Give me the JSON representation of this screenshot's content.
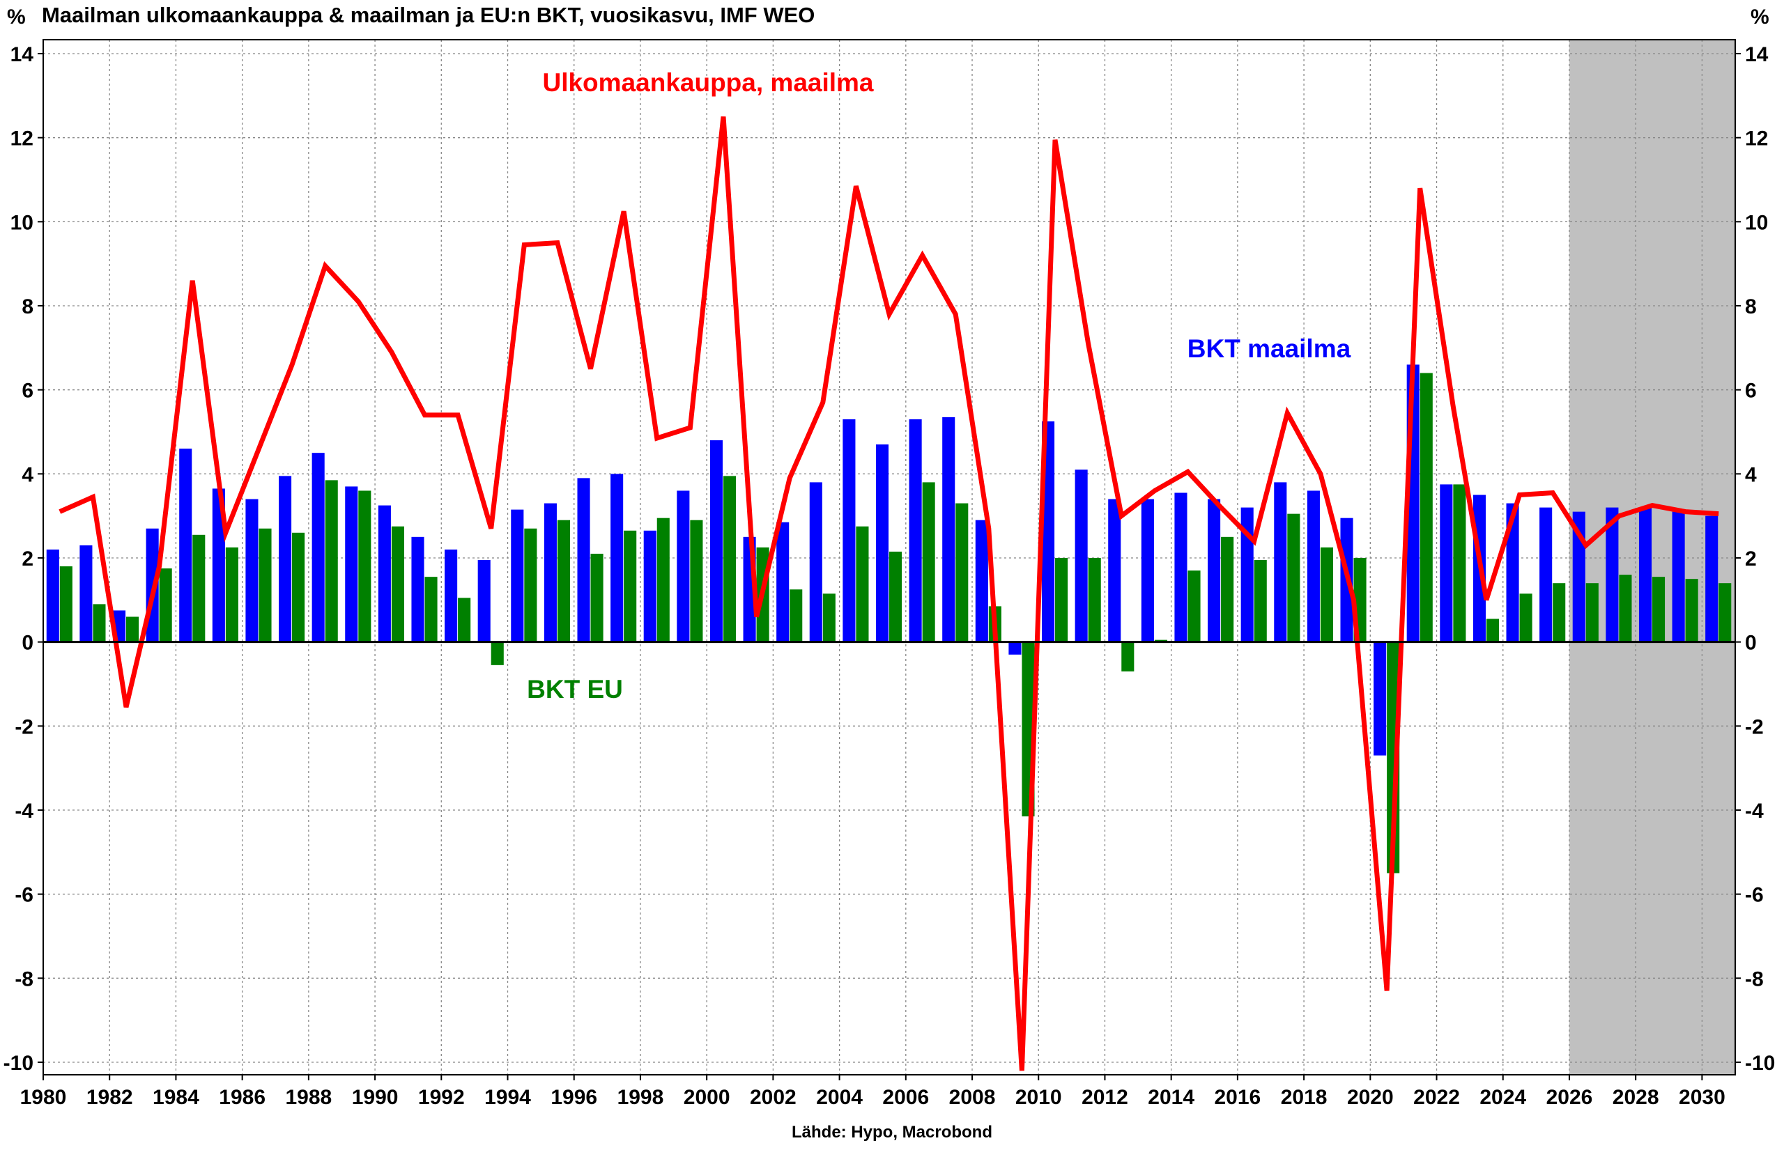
{
  "chart_data": {
    "type": "bar+line",
    "title": "Maailman ulkomaankauppa & maailman ja EU:n BKT, vuosikasvu, IMF WEO",
    "ylabel_left": "%",
    "ylabel_right": "%",
    "source": "Lähde: Hypo, Macrobond",
    "ylim": [
      -10.5,
      14.5
    ],
    "yticks": [
      -10,
      -8,
      -6,
      -4,
      -2,
      0,
      2,
      4,
      6,
      8,
      10,
      12,
      14
    ],
    "xlim": [
      1980,
      2031
    ],
    "xticks": [
      1980,
      1982,
      1984,
      1986,
      1988,
      1990,
      1992,
      1994,
      1996,
      1998,
      2000,
      2002,
      2004,
      2006,
      2008,
      2010,
      2012,
      2014,
      2016,
      2018,
      2020,
      2022,
      2024,
      2026,
      2028,
      2030
    ],
    "forecast_shading_from": 2026,
    "grid": true,
    "x": [
      1980,
      1981,
      1982,
      1983,
      1984,
      1985,
      1986,
      1987,
      1988,
      1989,
      1990,
      1991,
      1992,
      1993,
      1994,
      1995,
      1996,
      1997,
      1998,
      1999,
      2000,
      2001,
      2002,
      2003,
      2004,
      2005,
      2006,
      2007,
      2008,
      2009,
      2010,
      2011,
      2012,
      2013,
      2014,
      2015,
      2016,
      2017,
      2018,
      2019,
      2020,
      2021,
      2022,
      2023,
      2024,
      2025,
      2026,
      2027,
      2028,
      2029,
      2030
    ],
    "series": [
      {
        "name": "BKT maailma",
        "type": "bar",
        "color": "#0000ff",
        "values": [
          2.2,
          2.3,
          0.75,
          2.7,
          4.6,
          3.65,
          3.4,
          3.95,
          4.5,
          3.7,
          3.25,
          2.5,
          2.2,
          1.95,
          3.15,
          3.3,
          3.9,
          4.0,
          2.65,
          3.6,
          4.8,
          2.5,
          2.85,
          3.8,
          5.3,
          4.7,
          5.3,
          5.35,
          2.9,
          -0.3,
          5.25,
          4.1,
          3.4,
          3.4,
          3.55,
          3.4,
          3.2,
          3.8,
          3.6,
          2.95,
          -2.7,
          6.6,
          3.75,
          3.5,
          3.3,
          3.2,
          3.1,
          3.2,
          3.2,
          3.1,
          3.0
        ]
      },
      {
        "name": "BKT EU",
        "type": "bar",
        "color": "#008000",
        "values": [
          1.8,
          0.9,
          0.6,
          1.75,
          2.55,
          2.25,
          2.7,
          2.6,
          3.85,
          3.6,
          2.75,
          1.55,
          1.05,
          -0.55,
          2.7,
          2.9,
          2.1,
          2.65,
          2.95,
          2.9,
          3.95,
          2.25,
          1.25,
          1.15,
          2.75,
          2.15,
          3.8,
          3.3,
          0.85,
          -4.15,
          2.0,
          2.0,
          -0.7,
          0.05,
          1.7,
          2.5,
          1.95,
          3.05,
          2.25,
          2.0,
          -5.5,
          6.4,
          3.75,
          0.55,
          1.15,
          1.4,
          1.4,
          1.6,
          1.55,
          1.5,
          1.4
        ]
      },
      {
        "name": "Ulkomaankauppa, maailma",
        "type": "line",
        "color": "#ff0000",
        "values": [
          3.1,
          3.45,
          -1.55,
          1.8,
          8.6,
          2.6,
          4.6,
          6.6,
          8.95,
          8.1,
          6.9,
          5.4,
          5.4,
          2.7,
          9.45,
          9.5,
          6.5,
          10.25,
          4.85,
          5.1,
          12.5,
          0.6,
          3.9,
          5.7,
          10.85,
          7.8,
          9.2,
          7.8,
          2.7,
          -10.2,
          11.95,
          7.1,
          3.0,
          3.6,
          4.05,
          3.2,
          2.4,
          5.45,
          4.0,
          1.0,
          -8.3,
          10.8,
          5.6,
          1.0,
          3.5,
          3.55,
          2.3,
          3.0,
          3.25,
          3.1,
          3.05
        ]
      }
    ]
  }
}
